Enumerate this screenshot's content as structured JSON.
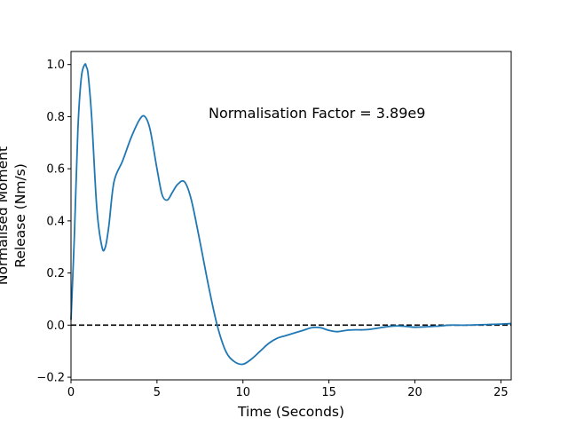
{
  "chart_data": {
    "type": "line",
    "title": "",
    "xlabel": "Time (Seconds)",
    "ylabel_lines": [
      "Normalised Moment",
      "Release (Nm/s)"
    ],
    "xlim": [
      0,
      25.6
    ],
    "ylim": [
      -0.21,
      1.05
    ],
    "x_ticks": [
      0,
      5,
      10,
      15,
      20,
      25
    ],
    "x_tick_labels": [
      "0",
      "5",
      "10",
      "15",
      "20",
      "25"
    ],
    "y_ticks": [
      -0.2,
      0.0,
      0.2,
      0.4,
      0.6,
      0.8,
      1.0
    ],
    "y_tick_labels": [
      "−0.2",
      "0.0",
      "0.2",
      "0.4",
      "0.6",
      "0.8",
      "1.0"
    ],
    "grid": false,
    "annotation": "Normalisation Factor = 3.89e9",
    "reference_line": {
      "y": 0,
      "style": "dashed",
      "color": "#000000"
    },
    "series": [
      {
        "color": "#1f77b4",
        "x": [
          0,
          0.2,
          0.4,
          0.6,
          0.8,
          0.9,
          1.0,
          1.2,
          1.5,
          1.8,
          2.0,
          2.2,
          2.5,
          3.0,
          3.5,
          4.0,
          4.3,
          4.6,
          5.0,
          5.3,
          5.6,
          5.9,
          6.2,
          6.6,
          7.0,
          7.5,
          8.0,
          8.5,
          9.0,
          9.5,
          10.0,
          10.5,
          11.0,
          11.5,
          12.0,
          12.5,
          13.0,
          13.5,
          14.0,
          14.5,
          15.0,
          15.5,
          16.0,
          16.5,
          17.0,
          17.5,
          18.0,
          18.5,
          19.0,
          19.5,
          20.0,
          20.5,
          21.0,
          21.5,
          22.0,
          22.5,
          23.0,
          23.5,
          24.0,
          24.5,
          25.0,
          25.6
        ],
        "y": [
          0.02,
          0.35,
          0.75,
          0.95,
          1.0,
          0.99,
          0.96,
          0.8,
          0.45,
          0.3,
          0.3,
          0.38,
          0.55,
          0.63,
          0.72,
          0.79,
          0.8,
          0.75,
          0.6,
          0.5,
          0.48,
          0.51,
          0.54,
          0.55,
          0.48,
          0.32,
          0.15,
          0.0,
          -0.1,
          -0.14,
          -0.15,
          -0.13,
          -0.1,
          -0.07,
          -0.05,
          -0.04,
          -0.03,
          -0.02,
          -0.01,
          -0.01,
          -0.02,
          -0.025,
          -0.02,
          -0.018,
          -0.018,
          -0.015,
          -0.01,
          -0.005,
          -0.003,
          -0.005,
          -0.008,
          -0.007,
          -0.005,
          -0.003,
          0.0,
          0.0,
          0.0,
          0.001,
          0.002,
          0.003,
          0.004,
          0.006
        ]
      }
    ]
  }
}
